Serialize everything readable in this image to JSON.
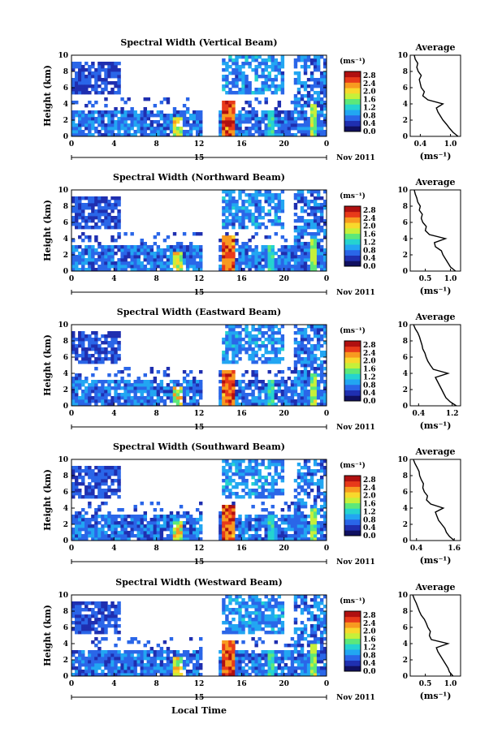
{
  "figure": {
    "x_axis_label": "Local Time",
    "date_label": "Nov 2011",
    "day_marker": "15",
    "y_axis_label": "Height (km)",
    "unit_label": "(ms⁻¹)",
    "average_title": "Average"
  },
  "colors": {
    "colormap": [
      "#101060",
      "#1f2fb0",
      "#2a66e8",
      "#22a6f2",
      "#25d3d0",
      "#5ce87a",
      "#c6f03a",
      "#f8d82c",
      "#f89a20",
      "#e83a1a",
      "#b01010"
    ]
  },
  "chart_data": [
    {
      "type": "heatmap",
      "title": "Spectral Width (Vertical Beam)",
      "x_ticks": [
        "0",
        "4",
        "8",
        "12",
        "16",
        "20",
        "0"
      ],
      "xlim": [
        0,
        24
      ],
      "y_ticks": [
        "0",
        "2",
        "4",
        "6",
        "8",
        "10"
      ],
      "ylim": [
        0,
        10
      ],
      "colorbar": {
        "ticks": [
          "0.0",
          "0.4",
          "0.8",
          "1.2",
          "1.6",
          "2.0",
          "2.4",
          "2.8"
        ],
        "range": [
          0,
          3.0
        ]
      },
      "profile": {
        "xlabel": "(ms⁻¹)",
        "x_ticks": [
          "0.4",
          "1.0"
        ],
        "x_tick_values": [
          0.4,
          1.0
        ],
        "xlim": [
          0.2,
          1.2
        ],
        "heights": [
          0,
          0.5,
          1,
          1.5,
          2,
          2.5,
          3,
          3.5,
          4,
          4.5,
          5,
          5.5,
          6,
          6.5,
          7,
          7.5,
          8,
          8.5,
          9,
          9.5,
          10
        ],
        "values": [
          1.15,
          1.05,
          0.98,
          0.92,
          0.85,
          0.8,
          0.75,
          0.72,
          0.85,
          0.55,
          0.45,
          0.48,
          0.42,
          0.4,
          0.38,
          0.42,
          0.36,
          0.33,
          0.35,
          0.3,
          0.28
        ]
      }
    },
    {
      "type": "heatmap",
      "title": "Spectral Width (Northward Beam)",
      "x_ticks": [
        "0",
        "4",
        "8",
        "12",
        "16",
        "20",
        "0"
      ],
      "xlim": [
        0,
        24
      ],
      "y_ticks": [
        "0",
        "2",
        "4",
        "6",
        "8",
        "10"
      ],
      "ylim": [
        0,
        10
      ],
      "colorbar": {
        "ticks": [
          "0.0",
          "0.4",
          "0.8",
          "1.2",
          "1.6",
          "2.0",
          "2.4",
          "2.8"
        ],
        "range": [
          0,
          3.0
        ]
      },
      "profile": {
        "xlabel": "(ms⁻¹)",
        "x_ticks": [
          "0.5",
          "1.0"
        ],
        "x_tick_values": [
          0.5,
          1.0
        ],
        "xlim": [
          0.2,
          1.2
        ],
        "heights": [
          0,
          0.5,
          1,
          1.5,
          2,
          2.5,
          3,
          3.5,
          4,
          4.5,
          5,
          5.5,
          6,
          6.5,
          7,
          7.5,
          8,
          8.5,
          9,
          9.5,
          10
        ],
        "values": [
          1.1,
          1.0,
          0.95,
          0.9,
          0.85,
          0.82,
          0.7,
          0.68,
          0.9,
          0.58,
          0.5,
          0.52,
          0.45,
          0.42,
          0.44,
          0.38,
          0.4,
          0.35,
          0.33,
          0.3,
          0.28
        ]
      }
    },
    {
      "type": "heatmap",
      "title": "Spectral Width (Eastward Beam)",
      "x_ticks": [
        "0",
        "4",
        "8",
        "12",
        "16",
        "20",
        "0"
      ],
      "xlim": [
        0,
        24
      ],
      "y_ticks": [
        "0",
        "2",
        "4",
        "6",
        "8",
        "10"
      ],
      "ylim": [
        0,
        10
      ],
      "colorbar": {
        "ticks": [
          "0.0",
          "0.4",
          "0.8",
          "1.2",
          "1.6",
          "2.0",
          "2.4",
          "2.8"
        ],
        "range": [
          0,
          3.0
        ]
      },
      "profile": {
        "xlabel": "(ms⁻¹)",
        "x_ticks": [
          "0.4",
          "1.2"
        ],
        "x_tick_values": [
          0.4,
          1.2
        ],
        "xlim": [
          0.2,
          1.4
        ],
        "heights": [
          0,
          0.5,
          1,
          1.5,
          2,
          2.5,
          3,
          3.5,
          4,
          4.5,
          5,
          5.5,
          6,
          6.5,
          7,
          7.5,
          8,
          8.5,
          9,
          9.5,
          10
        ],
        "values": [
          1.3,
          1.15,
          1.05,
          1.0,
          0.95,
          0.9,
          0.85,
          0.8,
          1.1,
          0.75,
          0.68,
          0.62,
          0.58,
          0.55,
          0.5,
          0.48,
          0.45,
          0.42,
          0.38,
          0.32,
          0.28
        ]
      }
    },
    {
      "type": "heatmap",
      "title": "Spectral Width (Southward Beam)",
      "x_ticks": [
        "0",
        "4",
        "8",
        "12",
        "16",
        "20",
        "0"
      ],
      "xlim": [
        0,
        24
      ],
      "y_ticks": [
        "0",
        "2",
        "4",
        "6",
        "8",
        "10"
      ],
      "ylim": [
        0,
        10
      ],
      "colorbar": {
        "ticks": [
          "0.0",
          "0.4",
          "0.8",
          "1.2",
          "1.6",
          "2.0",
          "2.4",
          "2.8"
        ],
        "range": [
          0,
          3.0
        ]
      },
      "profile": {
        "xlabel": "(ms⁻¹)",
        "x_ticks": [
          "0.4",
          "1.6"
        ],
        "x_tick_values": [
          0.4,
          1.6
        ],
        "xlim": [
          0.2,
          1.8
        ],
        "heights": [
          0,
          0.5,
          1,
          1.5,
          2,
          2.5,
          3,
          3.5,
          4,
          4.5,
          5,
          5.5,
          6,
          6.5,
          7,
          7.5,
          8,
          8.5,
          9,
          9.5,
          10
        ],
        "values": [
          1.6,
          1.45,
          1.35,
          1.3,
          1.2,
          1.1,
          1.05,
          1.0,
          1.25,
          0.85,
          0.72,
          0.75,
          0.65,
          0.6,
          0.62,
          0.55,
          0.5,
          0.48,
          0.42,
          0.35,
          0.3
        ]
      }
    },
    {
      "type": "heatmap",
      "title": "Spectral Width (Westward Beam)",
      "x_ticks": [
        "0",
        "4",
        "8",
        "12",
        "16",
        "20",
        "0"
      ],
      "xlim": [
        0,
        24
      ],
      "y_ticks": [
        "0",
        "2",
        "4",
        "6",
        "8",
        "10"
      ],
      "ylim": [
        0,
        10
      ],
      "colorbar": {
        "ticks": [
          "0.0",
          "0.4",
          "0.8",
          "1.2",
          "1.6",
          "2.0",
          "2.4",
          "2.8"
        ],
        "range": [
          0,
          3.0
        ]
      },
      "profile": {
        "xlabel": "(ms⁻¹)",
        "x_ticks": [
          "0.5",
          "1.0"
        ],
        "x_tick_values": [
          0.5,
          1.0
        ],
        "xlim": [
          0.2,
          1.2
        ],
        "heights": [
          0,
          0.5,
          1,
          1.5,
          2,
          2.5,
          3,
          3.5,
          4,
          4.5,
          5,
          5.5,
          6,
          6.5,
          7,
          7.5,
          8,
          8.5,
          9,
          9.5,
          10
        ],
        "values": [
          1.05,
          0.98,
          0.95,
          0.9,
          0.85,
          0.8,
          0.75,
          0.72,
          0.95,
          0.62,
          0.58,
          0.6,
          0.55,
          0.52,
          0.48,
          0.42,
          0.38,
          0.35,
          0.32,
          0.28,
          0.25
        ]
      }
    }
  ]
}
